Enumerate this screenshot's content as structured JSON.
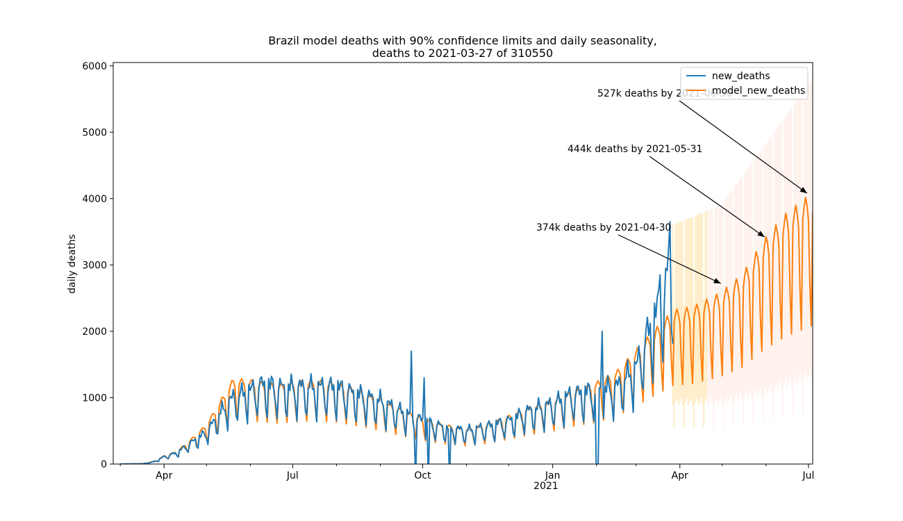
{
  "chart_data": {
    "type": "line",
    "title": "Brazil model deaths with 90% confidence limits and daily seasonality,",
    "subtitle": "deaths to 2021-03-27 of 310550",
    "xlabel": "",
    "ylabel": "daily deaths",
    "xlim": [
      "2020-02-25",
      "2021-07-04"
    ],
    "ylim": [
      0,
      6050
    ],
    "yticks": [
      0,
      1000,
      2000,
      3000,
      4000,
      5000,
      6000
    ],
    "xticks": [
      {
        "date": "2020-04-01",
        "label": "Apr"
      },
      {
        "date": "2020-07-01",
        "label": "Jul"
      },
      {
        "date": "2020-10-01",
        "label": "Oct"
      },
      {
        "date": "2021-01-01",
        "label": "Jan"
      },
      {
        "date": "2021-04-01",
        "label": "Apr"
      },
      {
        "date": "2021-07-01",
        "label": "Jul"
      }
    ],
    "year_label": "2021",
    "grid": false,
    "legend_position": "top-right",
    "series": [
      {
        "name": "new_deaths",
        "color": "#1f77b4",
        "x_start": "2020-03-01",
        "x_end": "2021-03-27",
        "points": [
          [
            "2020-03-01",
            0
          ],
          [
            "2020-03-17",
            3
          ],
          [
            "2020-03-25",
            35
          ],
          [
            "2020-04-01",
            110
          ],
          [
            "2020-04-10",
            170
          ],
          [
            "2020-04-20",
            320
          ],
          [
            "2020-05-01",
            480
          ],
          [
            "2020-05-12",
            800
          ],
          [
            "2020-05-20",
            1000
          ],
          [
            "2020-06-01",
            1100
          ],
          [
            "2020-06-10",
            1200
          ],
          [
            "2020-06-20",
            1150
          ],
          [
            "2020-07-01",
            1150
          ],
          [
            "2020-07-15",
            1150
          ],
          [
            "2020-08-01",
            1150
          ],
          [
            "2020-08-15",
            1050
          ],
          [
            "2020-09-01",
            950
          ],
          [
            "2020-09-15",
            800
          ],
          [
            "2020-10-01",
            650
          ],
          [
            "2020-10-15",
            560
          ],
          [
            "2020-11-01",
            500
          ],
          [
            "2020-11-15",
            560
          ],
          [
            "2020-12-01",
            650
          ],
          [
            "2020-12-15",
            800
          ],
          [
            "2021-01-01",
            900
          ],
          [
            "2021-01-15",
            1050
          ],
          [
            "2021-02-01",
            1100
          ],
          [
            "2021-02-15",
            1150
          ],
          [
            "2021-03-01",
            1450
          ],
          [
            "2021-03-10",
            2000
          ],
          [
            "2021-03-20",
            2500
          ],
          [
            "2021-03-27",
            3000
          ]
        ],
        "spikes": [
          [
            "2020-09-23",
            1700
          ],
          [
            "2020-10-02",
            1300
          ],
          [
            "2021-02-05",
            2000
          ],
          [
            "2021-03-18",
            2850
          ],
          [
            "2021-03-25",
            3650
          ],
          [
            "2021-03-24",
            3250
          ]
        ],
        "dips": [
          [
            "2020-09-26",
            0
          ],
          [
            "2020-10-05",
            0
          ],
          [
            "2020-10-20",
            0
          ],
          [
            "2021-02-01",
            0
          ],
          [
            "2021-02-02",
            0
          ]
        ]
      },
      {
        "name": "model_new_deaths",
        "color": "#ff7f0e",
        "x_start": "2020-03-01",
        "x_end": "2021-07-04",
        "weekly_trough_ratio": 0.55,
        "points": [
          [
            "2020-03-01",
            0
          ],
          [
            "2020-03-17",
            5
          ],
          [
            "2020-03-25",
            40
          ],
          [
            "2020-04-01",
            115
          ],
          [
            "2020-04-10",
            180
          ],
          [
            "2020-04-20",
            350
          ],
          [
            "2020-05-01",
            560
          ],
          [
            "2020-05-12",
            930
          ],
          [
            "2020-05-20",
            1200
          ],
          [
            "2020-06-01",
            1180
          ],
          [
            "2020-06-10",
            1150
          ],
          [
            "2020-06-20",
            1120
          ],
          [
            "2020-07-01",
            1150
          ],
          [
            "2020-07-15",
            1180
          ],
          [
            "2020-08-01",
            1150
          ],
          [
            "2020-08-15",
            1050
          ],
          [
            "2020-09-01",
            920
          ],
          [
            "2020-09-15",
            780
          ],
          [
            "2020-10-01",
            650
          ],
          [
            "2020-10-15",
            560
          ],
          [
            "2020-11-01",
            500
          ],
          [
            "2020-11-15",
            560
          ],
          [
            "2020-12-01",
            680
          ],
          [
            "2020-12-15",
            800
          ],
          [
            "2021-01-01",
            900
          ],
          [
            "2021-01-15",
            1030
          ],
          [
            "2021-02-01",
            1150
          ],
          [
            "2021-02-15",
            1300
          ],
          [
            "2021-03-01",
            1600
          ],
          [
            "2021-03-15",
            1900
          ],
          [
            "2021-03-27",
            2150
          ],
          [
            "2021-04-10",
            2200
          ],
          [
            "2021-04-30",
            2400
          ],
          [
            "2021-05-15",
            2650
          ],
          [
            "2021-05-31",
            3150
          ],
          [
            "2021-06-15",
            3500
          ],
          [
            "2021-07-04",
            3800
          ]
        ]
      }
    ],
    "confidence_band": {
      "label": "90% confidence limits",
      "start": "2021-03-27",
      "end": "2021-07-04",
      "lower": [
        [
          "2021-03-27",
          550
        ],
        [
          "2021-04-30",
          550
        ],
        [
          "2021-05-31",
          650
        ],
        [
          "2021-07-04",
          800
        ]
      ],
      "upper": [
        [
          "2021-03-27",
          3600
        ],
        [
          "2021-04-30",
          3900
        ],
        [
          "2021-05-31",
          4800
        ],
        [
          "2021-07-04",
          5800
        ]
      ],
      "color_near": "#ffd580",
      "color_far": "#ffd8c8"
    },
    "annotations": [
      {
        "text": "374k deaths by 2021-04-30",
        "arrow_to": {
          "date": "2021-04-30",
          "value": 2720
        }
      },
      {
        "text": "444k deaths by 2021-05-31",
        "arrow_to": {
          "date": "2021-05-31",
          "value": 3420
        }
      },
      {
        "text": "527k deaths by 2021-06-30",
        "arrow_to": {
          "date": "2021-06-30",
          "value": 4080
        }
      }
    ]
  }
}
